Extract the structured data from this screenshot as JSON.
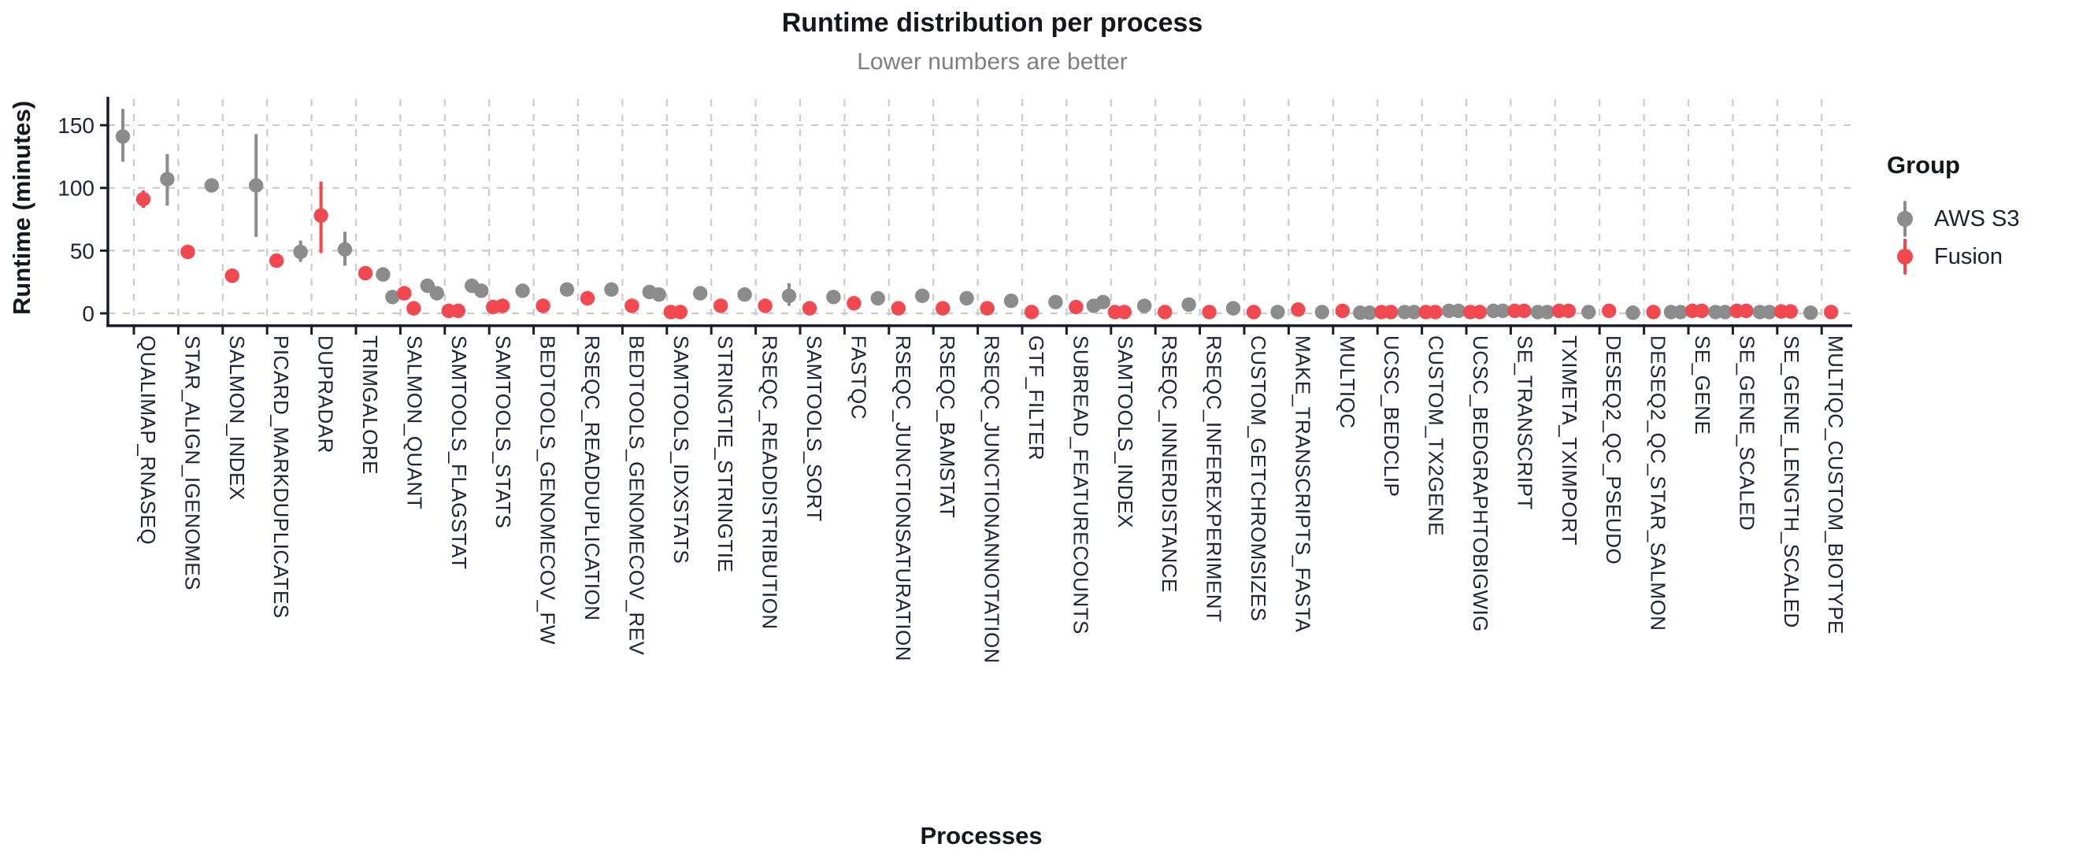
{
  "title": "Runtime distribution per process",
  "subtitle": "Lower numbers are better",
  "y_axis": {
    "label": "Runtime (minutes)",
    "tick_labels": [
      "0",
      "50",
      "100",
      "150"
    ]
  },
  "x_axis": {
    "label": "Processes"
  },
  "legend": {
    "title": "Group",
    "items": [
      {
        "label": "AWS S3",
        "color": "#8C8C8C"
      },
      {
        "label": "Fusion",
        "color": "#F2484F"
      }
    ]
  },
  "colors": {
    "aws": "#8C8C8C",
    "fusion": "#F2484F",
    "grid": "#cbcbcb",
    "axis": "#191c2a",
    "tick_text": "#20243a",
    "title_text": "#15171f",
    "subtitle_text": "#7f7f7f"
  },
  "chart_data": {
    "type": "scatter",
    "subtype": "pointrange-dodged",
    "title": "Runtime distribution per process",
    "subtitle": "Lower numbers are better",
    "xlabel": "Processes",
    "ylabel": "Runtime (minutes)",
    "ylim": [
      0,
      170
    ],
    "yticks": [
      0,
      50,
      100,
      150
    ],
    "grid": "dashed-major-xy",
    "legend_position": "right",
    "series_names": [
      "AWS S3",
      "Fusion"
    ],
    "categories": [
      "QUALIMAP_RNASEQ",
      "STAR_ALIGN_IGENOMES",
      "SALMON_INDEX",
      "PICARD_MARKDUPLICATES",
      "DUPRADAR",
      "TRIMGALORE",
      "SALMON_QUANT",
      "SAMTOOLS_FLAGSTAT",
      "SAMTOOLS_STATS",
      "BEDTOOLS_GENOMECOV_FW",
      "RSEQC_READDUPLICATION",
      "BEDTOOLS_GENOMECOV_REV",
      "SAMTOOLS_IDXSTATS",
      "STRINGTIE_STRINGTIE",
      "RSEQC_READDISTRIBUTION",
      "SAMTOOLS_SORT",
      "FASTQC",
      "RSEQC_JUNCTIONSATURATION",
      "RSEQC_BAMSTAT",
      "RSEQC_JUNCTIONANNOTATION",
      "GTF_FILTER",
      "SUBREAD_FEATURECOUNTS",
      "SAMTOOLS_INDEX",
      "RSEQC_INNERDISTANCE",
      "RSEQC_INFEREXPERIMENT",
      "CUSTOM_GETCHROMSIZES",
      "MAKE_TRANSCRIPTS_FASTA",
      "MULTIQC",
      "UCSC_BEDCLIP",
      "CUSTOM_TX2GENE",
      "UCSC_BEDGRAPHTOBIGWIG",
      "SE_TRANSCRIPT",
      "TXIMETA_TXIMPORT",
      "DESEQ2_QC_PSEUDO",
      "DESEQ2_QC_STAR_SALMON",
      "SE_GENE",
      "SE_GENE_SCALED",
      "SE_GENE_LENGTH_SCALED",
      "MULTIQC_CUSTOM_BIOTYPE"
    ],
    "processes": [
      {
        "name": "QUALIMAP_RNASEQ",
        "aws": [
          {
            "v": 141,
            "lo": 121,
            "hi": 163
          }
        ],
        "fusion": [
          {
            "v": 91,
            "lo": 84,
            "hi": 98
          }
        ]
      },
      {
        "name": "STAR_ALIGN_IGENOMES",
        "aws": [
          {
            "v": 107,
            "lo": 86,
            "hi": 127
          }
        ],
        "fusion": [
          {
            "v": 49
          }
        ]
      },
      {
        "name": "SALMON_INDEX",
        "aws": [
          {
            "v": 102
          }
        ],
        "fusion": [
          {
            "v": 30
          }
        ]
      },
      {
        "name": "PICARD_MARKDUPLICATES",
        "aws": [
          {
            "v": 102,
            "lo": 61,
            "hi": 143
          }
        ],
        "fusion": [
          {
            "v": 42
          }
        ]
      },
      {
        "name": "DUPRADAR",
        "aws": [
          {
            "v": 49,
            "lo": 41,
            "hi": 58
          }
        ],
        "fusion": [
          {
            "v": 78,
            "lo": 48,
            "hi": 105
          }
        ]
      },
      {
        "name": "TRIMGALORE",
        "aws": [
          {
            "v": 51,
            "lo": 38,
            "hi": 65
          }
        ],
        "fusion": [
          {
            "v": 32
          }
        ]
      },
      {
        "name": "SALMON_QUANT",
        "aws": [
          {
            "v": 31
          },
          {
            "v": 13
          }
        ],
        "fusion": [
          {
            "v": 16
          },
          {
            "v": 4
          }
        ]
      },
      {
        "name": "SAMTOOLS_FLAGSTAT",
        "aws": [
          {
            "v": 22
          },
          {
            "v": 16
          }
        ],
        "fusion": [
          {
            "v": 2
          },
          {
            "v": 2
          }
        ]
      },
      {
        "name": "SAMTOOLS_STATS",
        "aws": [
          {
            "v": 22,
            "lo": 18,
            "hi": 25
          },
          {
            "v": 18
          }
        ],
        "fusion": [
          {
            "v": 5
          },
          {
            "v": 6
          }
        ]
      },
      {
        "name": "BEDTOOLS_GENOMECOV_FW",
        "aws": [
          {
            "v": 18
          }
        ],
        "fusion": [
          {
            "v": 6
          }
        ]
      },
      {
        "name": "RSEQC_READDUPLICATION",
        "aws": [
          {
            "v": 19
          }
        ],
        "fusion": [
          {
            "v": 12
          }
        ]
      },
      {
        "name": "BEDTOOLS_GENOMECOV_REV",
        "aws": [
          {
            "v": 19
          }
        ],
        "fusion": [
          {
            "v": 6
          }
        ]
      },
      {
        "name": "SAMTOOLS_IDXSTATS",
        "aws": [
          {
            "v": 17
          },
          {
            "v": 15
          }
        ],
        "fusion": [
          {
            "v": 1
          },
          {
            "v": 1
          }
        ]
      },
      {
        "name": "STRINGTIE_STRINGTIE",
        "aws": [
          {
            "v": 16
          }
        ],
        "fusion": [
          {
            "v": 6
          }
        ]
      },
      {
        "name": "RSEQC_READDISTRIBUTION",
        "aws": [
          {
            "v": 15
          }
        ],
        "fusion": [
          {
            "v": 6
          }
        ]
      },
      {
        "name": "SAMTOOLS_SORT",
        "aws": [
          {
            "v": 14,
            "lo": 6,
            "hi": 24
          }
        ],
        "fusion": [
          {
            "v": 4
          }
        ]
      },
      {
        "name": "FASTQC",
        "aws": [
          {
            "v": 13
          }
        ],
        "fusion": [
          {
            "v": 8
          }
        ]
      },
      {
        "name": "RSEQC_JUNCTIONSATURATION",
        "aws": [
          {
            "v": 12
          }
        ],
        "fusion": [
          {
            "v": 4
          }
        ]
      },
      {
        "name": "RSEQC_BAMSTAT",
        "aws": [
          {
            "v": 14
          }
        ],
        "fusion": [
          {
            "v": 4
          }
        ]
      },
      {
        "name": "RSEQC_JUNCTIONANNOTATION",
        "aws": [
          {
            "v": 12
          }
        ],
        "fusion": [
          {
            "v": 4
          }
        ]
      },
      {
        "name": "GTF_FILTER",
        "aws": [
          {
            "v": 10
          }
        ],
        "fusion": [
          {
            "v": 1
          }
        ]
      },
      {
        "name": "SUBREAD_FEATURECOUNTS",
        "aws": [
          {
            "v": 9
          }
        ],
        "fusion": [
          {
            "v": 5
          }
        ]
      },
      {
        "name": "SAMTOOLS_INDEX",
        "aws": [
          {
            "v": 6
          },
          {
            "v": 9
          }
        ],
        "fusion": [
          {
            "v": 1
          },
          {
            "v": 1
          }
        ]
      },
      {
        "name": "RSEQC_INNERDISTANCE",
        "aws": [
          {
            "v": 6
          }
        ],
        "fusion": [
          {
            "v": 1
          }
        ]
      },
      {
        "name": "RSEQC_INFEREXPERIMENT",
        "aws": [
          {
            "v": 7
          }
        ],
        "fusion": [
          {
            "v": 1
          }
        ]
      },
      {
        "name": "CUSTOM_GETCHROMSIZES",
        "aws": [
          {
            "v": 4
          }
        ],
        "fusion": [
          {
            "v": 1
          }
        ]
      },
      {
        "name": "MAKE_TRANSCRIPTS_FASTA",
        "aws": [
          {
            "v": 1
          }
        ],
        "fusion": [
          {
            "v": 3
          }
        ]
      },
      {
        "name": "MULTIQC",
        "aws": [
          {
            "v": 1
          }
        ],
        "fusion": [
          {
            "v": 2
          }
        ]
      },
      {
        "name": "UCSC_BEDCLIP",
        "aws": [
          {
            "v": 0.5
          },
          {
            "v": 0.5
          }
        ],
        "fusion": [
          {
            "v": 1
          },
          {
            "v": 1
          }
        ]
      },
      {
        "name": "CUSTOM_TX2GENE",
        "aws": [
          {
            "v": 1
          },
          {
            "v": 1
          }
        ],
        "fusion": [
          {
            "v": 1
          },
          {
            "v": 1
          }
        ]
      },
      {
        "name": "UCSC_BEDGRAPHTOBIGWIG",
        "aws": [
          {
            "v": 2
          },
          {
            "v": 2
          }
        ],
        "fusion": [
          {
            "v": 1
          },
          {
            "v": 1
          }
        ]
      },
      {
        "name": "SE_TRANSCRIPT",
        "aws": [
          {
            "v": 2
          },
          {
            "v": 2
          }
        ],
        "fusion": [
          {
            "v": 2
          },
          {
            "v": 2
          }
        ]
      },
      {
        "name": "TXIMETA_TXIMPORT",
        "aws": [
          {
            "v": 1
          },
          {
            "v": 1
          }
        ],
        "fusion": [
          {
            "v": 2
          },
          {
            "v": 2
          }
        ]
      },
      {
        "name": "DESEQ2_QC_PSEUDO",
        "aws": [
          {
            "v": 1
          }
        ],
        "fusion": [
          {
            "v": 2
          }
        ]
      },
      {
        "name": "DESEQ2_QC_STAR_SALMON",
        "aws": [
          {
            "v": 0.5
          }
        ],
        "fusion": [
          {
            "v": 1
          }
        ]
      },
      {
        "name": "SE_GENE",
        "aws": [
          {
            "v": 1
          },
          {
            "v": 1
          }
        ],
        "fusion": [
          {
            "v": 2
          },
          {
            "v": 2
          }
        ]
      },
      {
        "name": "SE_GENE_SCALED",
        "aws": [
          {
            "v": 1
          },
          {
            "v": 1
          }
        ],
        "fusion": [
          {
            "v": 2
          },
          {
            "v": 2
          }
        ]
      },
      {
        "name": "SE_GENE_LENGTH_SCALED",
        "aws": [
          {
            "v": 1
          },
          {
            "v": 1
          }
        ],
        "fusion": [
          {
            "v": 1.5
          },
          {
            "v": 1.5
          }
        ]
      },
      {
        "name": "MULTIQC_CUSTOM_BIOTYPE",
        "aws": [
          {
            "v": 0.5
          }
        ],
        "fusion": [
          {
            "v": 1
          }
        ]
      }
    ]
  }
}
